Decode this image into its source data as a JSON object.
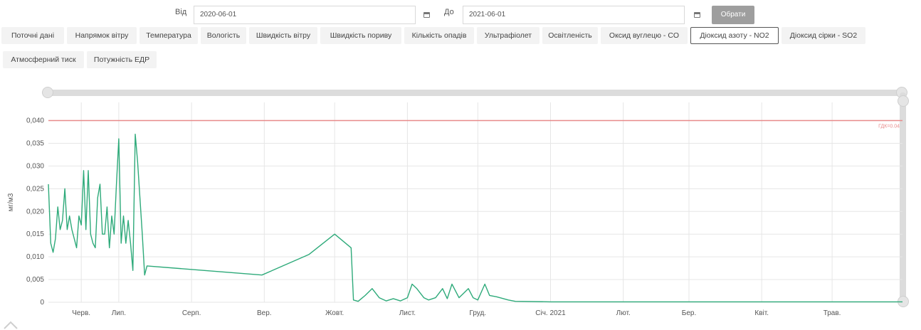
{
  "filters": {
    "from_label": "Від",
    "from_value": "2020-06-01",
    "to_label": "До",
    "to_value": "2021-06-01",
    "apply_label": "Обрати"
  },
  "tabs": [
    {
      "label": "Поточні дані",
      "active": false
    },
    {
      "label": "Напрямок вітру",
      "active": false
    },
    {
      "label": "Температура",
      "active": false
    },
    {
      "label": "Вологість",
      "active": false
    },
    {
      "label": "Швидкість вітру",
      "active": false
    },
    {
      "label": "Швидкість пориву",
      "active": false
    },
    {
      "label": "Кількість опадів",
      "active": false
    },
    {
      "label": "Ультрафіолет",
      "active": false
    },
    {
      "label": "Освітленість",
      "active": false
    },
    {
      "label": "Оксид вуглецю - CO",
      "active": false
    },
    {
      "label": "Діоксид азоту - NO2",
      "active": true
    },
    {
      "label": "Діоксид сірки - SO2",
      "active": false
    },
    {
      "label": "Атмосферний тиск",
      "active": false
    },
    {
      "label": "Потужність ЕДР",
      "active": false
    }
  ],
  "colors": {
    "series": "#2eaa7a",
    "limit_line": "#e88a8a",
    "grid": "#e6e6e6",
    "axis_text": "#555555",
    "active_tab_border": "#555555",
    "apply_button": "#9e9e9e"
  },
  "chart_data": {
    "type": "line",
    "ylabel": "мг/м3",
    "ylim": [
      0,
      0.044
    ],
    "yticks": [
      "0",
      "0,005",
      "0,010",
      "0,015",
      "0,020",
      "0,025",
      "0,030",
      "0,035",
      "0,040"
    ],
    "yticks_values": [
      0,
      0.005,
      0.01,
      0.015,
      0.02,
      0.025,
      0.03,
      0.035,
      0.04
    ],
    "xlim": [
      "2020-06-01",
      "2021-05-31"
    ],
    "x_ticks": [
      {
        "date": "2020-06-15",
        "label": "Черв."
      },
      {
        "date": "2020-07-01",
        "label": "Лип."
      },
      {
        "date": "2020-08-01",
        "label": "Серп."
      },
      {
        "date": "2020-09-01",
        "label": "Вер."
      },
      {
        "date": "2020-10-01",
        "label": "Жовт."
      },
      {
        "date": "2020-11-01",
        "label": "Лист."
      },
      {
        "date": "2020-12-01",
        "label": "Груд."
      },
      {
        "date": "2021-01-01",
        "label": "Січ. 2021"
      },
      {
        "date": "2021-02-01",
        "label": "Лют."
      },
      {
        "date": "2021-03-01",
        "label": "Бер."
      },
      {
        "date": "2021-04-01",
        "label": "Квіт."
      },
      {
        "date": "2021-05-01",
        "label": "Трав."
      }
    ],
    "grid": true,
    "threshold": {
      "value": 0.04,
      "label": "ГДК=0.04"
    },
    "series": [
      {
        "points": [
          [
            "2020-06-01",
            0.026
          ],
          [
            "2020-06-02",
            0.013
          ],
          [
            "2020-06-03",
            0.011
          ],
          [
            "2020-06-04",
            0.014
          ],
          [
            "2020-06-05",
            0.021
          ],
          [
            "2020-06-06",
            0.016
          ],
          [
            "2020-06-07",
            0.018
          ],
          [
            "2020-06-08",
            0.025
          ],
          [
            "2020-06-09",
            0.016
          ],
          [
            "2020-06-10",
            0.019
          ],
          [
            "2020-06-11",
            0.016
          ],
          [
            "2020-06-12",
            0.014
          ],
          [
            "2020-06-13",
            0.012
          ],
          [
            "2020-06-14",
            0.019
          ],
          [
            "2020-06-15",
            0.017
          ],
          [
            "2020-06-16",
            0.029
          ],
          [
            "2020-06-17",
            0.016
          ],
          [
            "2020-06-18",
            0.029
          ],
          [
            "2020-06-19",
            0.015
          ],
          [
            "2020-06-20",
            0.013
          ],
          [
            "2020-06-21",
            0.012
          ],
          [
            "2020-06-22",
            0.023
          ],
          [
            "2020-06-23",
            0.026
          ],
          [
            "2020-06-24",
            0.015
          ],
          [
            "2020-06-25",
            0.015
          ],
          [
            "2020-06-26",
            0.021
          ],
          [
            "2020-06-27",
            0.012
          ],
          [
            "2020-06-28",
            0.019
          ],
          [
            "2020-06-29",
            0.015
          ],
          [
            "2020-06-30",
            0.026
          ],
          [
            "2020-07-01",
            0.036
          ],
          [
            "2020-07-02",
            0.013
          ],
          [
            "2020-07-03",
            0.019
          ],
          [
            "2020-07-04",
            0.013
          ],
          [
            "2020-07-05",
            0.018
          ],
          [
            "2020-07-06",
            0.013
          ],
          [
            "2020-07-07",
            0.007
          ],
          [
            "2020-07-08",
            0.037
          ],
          [
            "2020-07-09",
            0.031
          ],
          [
            "2020-07-10",
            0.023
          ],
          [
            "2020-07-11",
            0.015
          ],
          [
            "2020-07-12",
            0.006
          ],
          [
            "2020-07-13",
            0.008
          ],
          [
            "2020-08-31",
            0.006
          ],
          [
            "2020-09-20",
            0.0105
          ],
          [
            "2020-10-01",
            0.015
          ],
          [
            "2020-10-08",
            0.012
          ],
          [
            "2020-10-09",
            0.0005
          ],
          [
            "2020-10-11",
            0.0002
          ],
          [
            "2020-10-14",
            0.0015
          ],
          [
            "2020-10-17",
            0.003
          ],
          [
            "2020-10-20",
            0.001
          ],
          [
            "2020-10-23",
            0.0003
          ],
          [
            "2020-10-26",
            0.0008
          ],
          [
            "2020-10-29",
            0.0003
          ],
          [
            "2020-11-01",
            0.001
          ],
          [
            "2020-11-03",
            0.004
          ],
          [
            "2020-11-05",
            0.003
          ],
          [
            "2020-11-08",
            0.001
          ],
          [
            "2020-11-10",
            0.0005
          ],
          [
            "2020-11-13",
            0.001
          ],
          [
            "2020-11-16",
            0.003
          ],
          [
            "2020-11-18",
            0.0008
          ],
          [
            "2020-11-20",
            0.004
          ],
          [
            "2020-11-23",
            0.001
          ],
          [
            "2020-11-25",
            0.002
          ],
          [
            "2020-11-27",
            0.003
          ],
          [
            "2020-11-29",
            0.001
          ],
          [
            "2020-12-01",
            0.0005
          ],
          [
            "2020-12-04",
            0.004
          ],
          [
            "2020-12-06",
            0.0015
          ],
          [
            "2020-12-09",
            0.0012
          ],
          [
            "2020-12-14",
            0.0005
          ],
          [
            "2020-12-17",
            0.0002
          ],
          [
            "2021-01-01",
            0.0001
          ],
          [
            "2021-02-01",
            0.0001
          ],
          [
            "2021-03-01",
            0.0001
          ],
          [
            "2021-04-01",
            0.0001
          ],
          [
            "2021-05-01",
            0.0001
          ],
          [
            "2021-05-31",
            0.0001
          ]
        ]
      }
    ]
  }
}
